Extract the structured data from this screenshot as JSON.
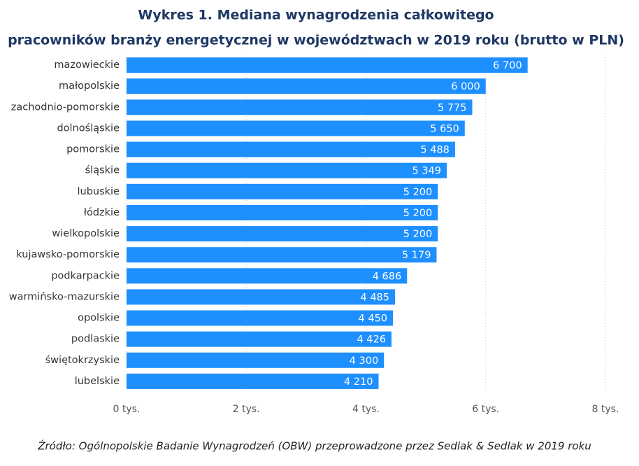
{
  "chart_data": {
    "type": "barh",
    "title": [
      "Wykres 1. Mediana wynagrodzenia całkowitego",
      "pracowników branży energetycznej w województwach w 2019 roku (brutto w PLN)"
    ],
    "categories": [
      "mazowieckie",
      "małopolskie",
      "zachodnio-pomorskie",
      "dolnośląskie",
      "pomorskie",
      "śląskie",
      "lubuskie",
      "łódzkie",
      "wielkopolskie",
      "kujawsko-pomorskie",
      "podkarpackie",
      "warmińsko-mazurskie",
      "opolskie",
      "podlaskie",
      "świętokrzyskie",
      "lubelskie"
    ],
    "values": [
      6700,
      6000,
      5775,
      5650,
      5488,
      5349,
      5200,
      5200,
      5200,
      5179,
      4686,
      4485,
      4450,
      4426,
      4300,
      4210
    ],
    "value_labels": [
      "6 700",
      "6 000",
      "5 775",
      "5 650",
      "5 488",
      "5 349",
      "5 200",
      "5 200",
      "5 200",
      "5 179",
      "4 686",
      "4 485",
      "4 450",
      "4 426",
      "4 300",
      "4 210"
    ],
    "color": "#1e8fff",
    "xlim": [
      0,
      8000
    ],
    "xticks": [
      {
        "value": 0,
        "label": "0 tys."
      },
      {
        "value": 2000,
        "label": "2 tys."
      },
      {
        "value": 4000,
        "label": "4 tys."
      },
      {
        "value": 6000,
        "label": "6 tys."
      },
      {
        "value": 8000,
        "label": "8 tys."
      }
    ],
    "grid": true,
    "source": "Źródło: Ogólnopolskie Badanie Wynagrodzeń (OBW) przeprowadzone przez Sedlak & Sedlak w 2019 roku"
  }
}
